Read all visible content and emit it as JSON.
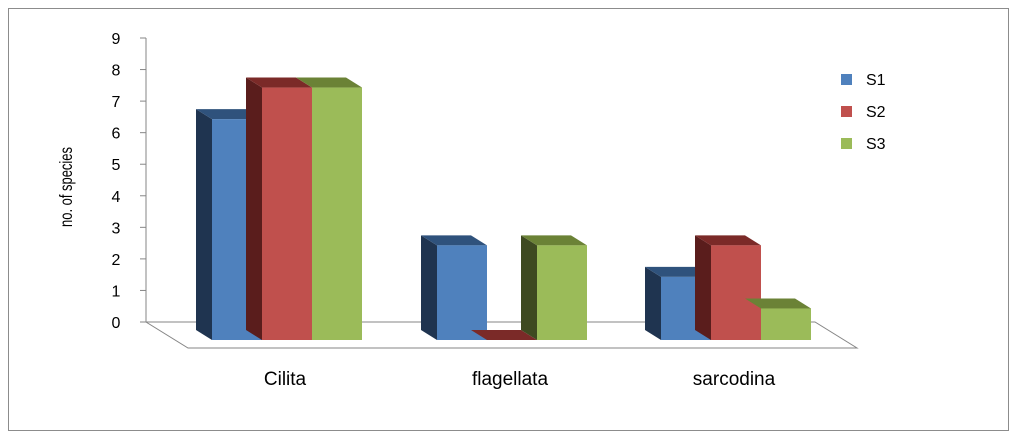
{
  "chart_data": {
    "type": "bar",
    "title": "",
    "xlabel": "",
    "ylabel": "no. of species",
    "categories": [
      "Cilita",
      "flagellata",
      "sarcodina"
    ],
    "series": [
      {
        "name": "S1",
        "values": [
          7,
          3,
          2
        ]
      },
      {
        "name": "S2",
        "values": [
          8,
          0,
          3
        ]
      },
      {
        "name": "S3",
        "values": [
          8,
          3,
          1
        ]
      }
    ],
    "ylim": [
      0,
      9
    ],
    "yticks": [
      "0",
      "1",
      "2",
      "3",
      "4",
      "5",
      "6",
      "7",
      "8",
      "9"
    ],
    "grid": false,
    "legend_position": "right",
    "three_d": true,
    "colors": {
      "S1": {
        "front": "#4f81bd",
        "side": "#1f3450",
        "top": "#2f527c"
      },
      "S2": {
        "front": "#c0504d",
        "side": "#5a1d1c",
        "top": "#7b2a28"
      },
      "S3": {
        "front": "#9bbb59",
        "side": "#3e4a21",
        "top": "#6b8236"
      }
    }
  }
}
